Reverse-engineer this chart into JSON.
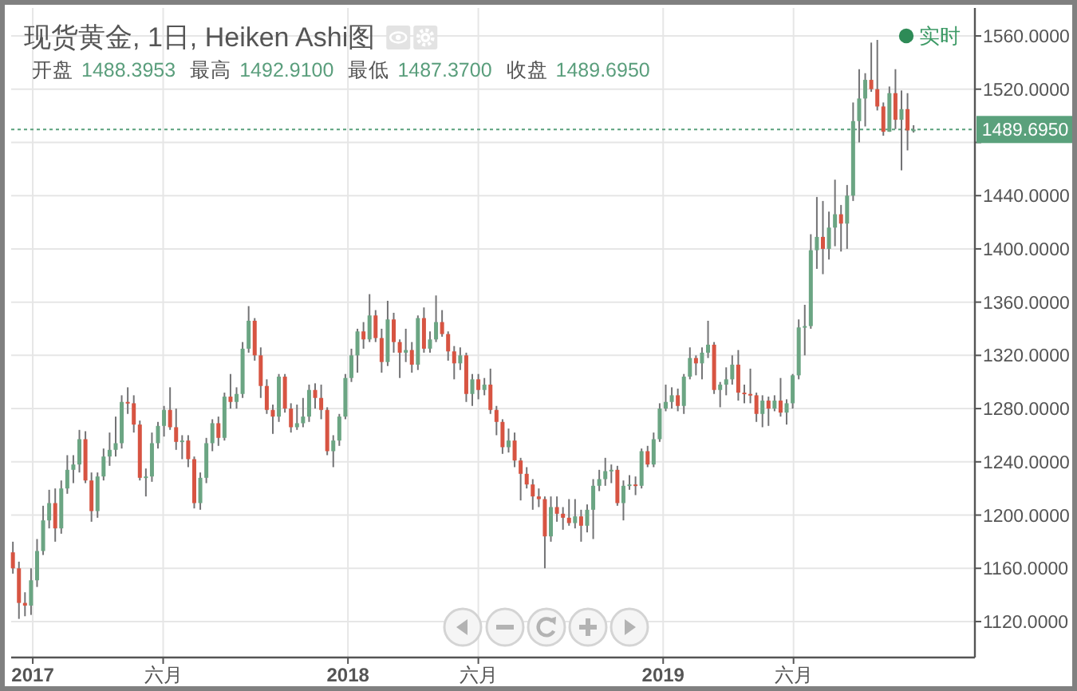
{
  "chart_data": {
    "type": "candlestick",
    "title": "现货黄金, 1日, Heiken Ashi图",
    "annotations": [
      "开盘",
      "1488.3953",
      "最高",
      "1492.9100",
      "最低",
      "1487.3700",
      "收盘",
      "1489.6950",
      "实时"
    ],
    "x": [
      "2016-12-09",
      "2016-12-16",
      "2016-12-23",
      "2016-12-30",
      "2017-01-06",
      "2017-01-13",
      "2017-01-20",
      "2017-01-27",
      "2017-02-03",
      "2017-02-10",
      "2017-02-17",
      "2017-02-24",
      "2017-03-03",
      "2017-03-10",
      "2017-03-17",
      "2017-03-24",
      "2017-03-31",
      "2017-04-07",
      "2017-04-14",
      "2017-04-21",
      "2017-04-28",
      "2017-05-05",
      "2017-05-12",
      "2017-05-19",
      "2017-05-26",
      "2017-06-02",
      "2017-06-09",
      "2017-06-16",
      "2017-06-23",
      "2017-06-30",
      "2017-07-07",
      "2017-07-14",
      "2017-07-21",
      "2017-07-28",
      "2017-08-04",
      "2017-08-11",
      "2017-08-18",
      "2017-08-25",
      "2017-09-01",
      "2017-09-08",
      "2017-09-15",
      "2017-09-22",
      "2017-09-29",
      "2017-10-06",
      "2017-10-13",
      "2017-10-20",
      "2017-10-27",
      "2017-11-03",
      "2017-11-10",
      "2017-11-17",
      "2017-11-24",
      "2017-12-01",
      "2017-12-08",
      "2017-12-15",
      "2017-12-22",
      "2017-12-29",
      "2018-01-05",
      "2018-01-12",
      "2018-01-19",
      "2018-01-26",
      "2018-02-02",
      "2018-02-09",
      "2018-02-16",
      "2018-02-23",
      "2018-03-02",
      "2018-03-09",
      "2018-03-16",
      "2018-03-23",
      "2018-03-30",
      "2018-04-06",
      "2018-04-13",
      "2018-04-20",
      "2018-04-27",
      "2018-05-04",
      "2018-05-11",
      "2018-05-18",
      "2018-05-25",
      "2018-06-01",
      "2018-06-08",
      "2018-06-15",
      "2018-06-22",
      "2018-06-29",
      "2018-07-06",
      "2018-07-13",
      "2018-07-20",
      "2018-07-27",
      "2018-08-03",
      "2018-08-10",
      "2018-08-17",
      "2018-08-24",
      "2018-08-31",
      "2018-09-07",
      "2018-09-14",
      "2018-09-21",
      "2018-09-28",
      "2018-10-05",
      "2018-10-12",
      "2018-10-19",
      "2018-10-26",
      "2018-11-02",
      "2018-11-09",
      "2018-11-16",
      "2018-11-23",
      "2018-11-30",
      "2018-12-07",
      "2018-12-14",
      "2018-12-21",
      "2018-12-28",
      "2019-01-04",
      "2019-01-11",
      "2019-01-18",
      "2019-01-25",
      "2019-02-01",
      "2019-02-08",
      "2019-02-15",
      "2019-02-22",
      "2019-03-01",
      "2019-03-08",
      "2019-03-15",
      "2019-03-22",
      "2019-03-29",
      "2019-04-05",
      "2019-04-12",
      "2019-04-19",
      "2019-04-26",
      "2019-05-03",
      "2019-05-10",
      "2019-05-17",
      "2019-05-24",
      "2019-05-31",
      "2019-06-07",
      "2019-06-14",
      "2019-06-21",
      "2019-06-28",
      "2019-07-05",
      "2019-07-12",
      "2019-07-19",
      "2019-07-26",
      "2019-08-02",
      "2019-08-09",
      "2019-08-16",
      "2019-08-23",
      "2019-08-30",
      "2019-09-06",
      "2019-09-13",
      "2019-09-20",
      "2019-09-27",
      "2019-10-04",
      "2019-10-11",
      "2019-10-18"
    ],
    "ohlc": [
      [
        1172,
        1180,
        1156,
        1160
      ],
      [
        1160,
        1165,
        1122,
        1134
      ],
      [
        1134,
        1142,
        1124,
        1132
      ],
      [
        1132,
        1160,
        1125,
        1151
      ],
      [
        1151,
        1182,
        1146,
        1173
      ],
      [
        1173,
        1207,
        1170,
        1196
      ],
      [
        1196,
        1219,
        1190,
        1209
      ],
      [
        1209,
        1220,
        1180,
        1190
      ],
      [
        1190,
        1226,
        1186,
        1220
      ],
      [
        1220,
        1245,
        1216,
        1234
      ],
      [
        1234,
        1245,
        1224,
        1238
      ],
      [
        1238,
        1264,
        1232,
        1257
      ],
      [
        1257,
        1263,
        1224,
        1226
      ],
      [
        1226,
        1232,
        1195,
        1203
      ],
      [
        1203,
        1232,
        1198,
        1229
      ],
      [
        1229,
        1250,
        1226,
        1244
      ],
      [
        1244,
        1262,
        1237,
        1249
      ],
      [
        1249,
        1274,
        1244,
        1254
      ],
      [
        1254,
        1290,
        1250,
        1285
      ],
      [
        1285,
        1296,
        1276,
        1284
      ],
      [
        1284,
        1290,
        1262,
        1268
      ],
      [
        1268,
        1271,
        1226,
        1228
      ],
      [
        1228,
        1235,
        1214,
        1229
      ],
      [
        1229,
        1262,
        1225,
        1254
      ],
      [
        1254,
        1270,
        1250,
        1267
      ],
      [
        1267,
        1282,
        1259,
        1279
      ],
      [
        1279,
        1296,
        1264,
        1266
      ],
      [
        1266,
        1280,
        1249,
        1255
      ],
      [
        1255,
        1260,
        1242,
        1256
      ],
      [
        1256,
        1260,
        1236,
        1242
      ],
      [
        1242,
        1244,
        1205,
        1209
      ],
      [
        1209,
        1232,
        1204,
        1228
      ],
      [
        1228,
        1258,
        1224,
        1254
      ],
      [
        1254,
        1272,
        1248,
        1269
      ],
      [
        1269,
        1274,
        1252,
        1258
      ],
      [
        1258,
        1292,
        1256,
        1289
      ],
      [
        1289,
        1306,
        1280,
        1285
      ],
      [
        1285,
        1296,
        1280,
        1291
      ],
      [
        1291,
        1330,
        1288,
        1325
      ],
      [
        1325,
        1357,
        1322,
        1346
      ],
      [
        1346,
        1348,
        1316,
        1320
      ],
      [
        1320,
        1326,
        1288,
        1297
      ],
      [
        1297,
        1302,
        1276,
        1279
      ],
      [
        1279,
        1283,
        1261,
        1274
      ],
      [
        1274,
        1306,
        1270,
        1304
      ],
      [
        1304,
        1306,
        1277,
        1280
      ],
      [
        1280,
        1284,
        1262,
        1266
      ],
      [
        1266,
        1283,
        1264,
        1269
      ],
      [
        1269,
        1288,
        1266,
        1274
      ],
      [
        1274,
        1298,
        1270,
        1294
      ],
      [
        1294,
        1299,
        1280,
        1288
      ],
      [
        1288,
        1298,
        1272,
        1279
      ],
      [
        1279,
        1281,
        1245,
        1248
      ],
      [
        1248,
        1260,
        1236,
        1256
      ],
      [
        1256,
        1276,
        1252,
        1274
      ],
      [
        1274,
        1306,
        1272,
        1303
      ],
      [
        1303,
        1325,
        1300,
        1320
      ],
      [
        1320,
        1340,
        1307,
        1338
      ],
      [
        1338,
        1345,
        1325,
        1332
      ],
      [
        1332,
        1366,
        1330,
        1350
      ],
      [
        1350,
        1354,
        1330,
        1333
      ],
      [
        1333,
        1340,
        1307,
        1315
      ],
      [
        1315,
        1361,
        1312,
        1347
      ],
      [
        1347,
        1352,
        1322,
        1330
      ],
      [
        1330,
        1332,
        1303,
        1322
      ],
      [
        1322,
        1340,
        1315,
        1324
      ],
      [
        1324,
        1330,
        1307,
        1313
      ],
      [
        1313,
        1350,
        1309,
        1348
      ],
      [
        1348,
        1356,
        1322,
        1325
      ],
      [
        1325,
        1338,
        1322,
        1332
      ],
      [
        1332,
        1365,
        1330,
        1345
      ],
      [
        1345,
        1354,
        1334,
        1336
      ],
      [
        1336,
        1338,
        1316,
        1323
      ],
      [
        1323,
        1327,
        1302,
        1314
      ],
      [
        1314,
        1326,
        1309,
        1320
      ],
      [
        1320,
        1322,
        1285,
        1291
      ],
      [
        1291,
        1306,
        1282,
        1302
      ],
      [
        1302,
        1306,
        1287,
        1294
      ],
      [
        1294,
        1303,
        1290,
        1298
      ],
      [
        1298,
        1310,
        1276,
        1279
      ],
      [
        1279,
        1282,
        1260,
        1270
      ],
      [
        1270,
        1272,
        1246,
        1251
      ],
      [
        1251,
        1265,
        1247,
        1256
      ],
      [
        1256,
        1262,
        1236,
        1241
      ],
      [
        1241,
        1243,
        1211,
        1231
      ],
      [
        1231,
        1236,
        1220,
        1223
      ],
      [
        1223,
        1227,
        1204,
        1214
      ],
      [
        1214,
        1220,
        1206,
        1212
      ],
      [
        1212,
        1214,
        1160,
        1184
      ],
      [
        1184,
        1214,
        1180,
        1206
      ],
      [
        1206,
        1214,
        1195,
        1201
      ],
      [
        1201,
        1206,
        1189,
        1198
      ],
      [
        1198,
        1212,
        1192,
        1194
      ],
      [
        1194,
        1212,
        1190,
        1199
      ],
      [
        1199,
        1204,
        1180,
        1192
      ],
      [
        1192,
        1208,
        1187,
        1204
      ],
      [
        1204,
        1227,
        1182,
        1222
      ],
      [
        1222,
        1234,
        1218,
        1227
      ],
      [
        1227,
        1243,
        1222,
        1233
      ],
      [
        1233,
        1238,
        1224,
        1234
      ],
      [
        1234,
        1237,
        1207,
        1209
      ],
      [
        1209,
        1226,
        1196,
        1222
      ],
      [
        1222,
        1230,
        1219,
        1223
      ],
      [
        1223,
        1229,
        1215,
        1222
      ],
      [
        1222,
        1250,
        1220,
        1248
      ],
      [
        1248,
        1252,
        1236,
        1238
      ],
      [
        1238,
        1262,
        1236,
        1257
      ],
      [
        1257,
        1284,
        1255,
        1280
      ],
      [
        1280,
        1298,
        1278,
        1285
      ],
      [
        1285,
        1296,
        1280,
        1290
      ],
      [
        1290,
        1295,
        1278,
        1282
      ],
      [
        1282,
        1306,
        1276,
        1304
      ],
      [
        1304,
        1326,
        1302,
        1318
      ],
      [
        1318,
        1320,
        1305,
        1314
      ],
      [
        1314,
        1326,
        1302,
        1322
      ],
      [
        1322,
        1346,
        1318,
        1328
      ],
      [
        1328,
        1330,
        1291,
        1294
      ],
      [
        1294,
        1300,
        1281,
        1298
      ],
      [
        1298,
        1311,
        1290,
        1302
      ],
      [
        1302,
        1320,
        1298,
        1313
      ],
      [
        1313,
        1324,
        1286,
        1292
      ],
      [
        1292,
        1298,
        1284,
        1291
      ],
      [
        1291,
        1310,
        1284,
        1290
      ],
      [
        1290,
        1292,
        1270,
        1276
      ],
      [
        1276,
        1290,
        1266,
        1286
      ],
      [
        1286,
        1289,
        1267,
        1280
      ],
      [
        1280,
        1290,
        1278,
        1286
      ],
      [
        1286,
        1303,
        1274,
        1277
      ],
      [
        1277,
        1287,
        1268,
        1284
      ],
      [
        1284,
        1306,
        1280,
        1305
      ],
      [
        1305,
        1347,
        1302,
        1341
      ],
      [
        1341,
        1358,
        1320,
        1342
      ],
      [
        1342,
        1411,
        1340,
        1399
      ],
      [
        1399,
        1439,
        1385,
        1409
      ],
      [
        1409,
        1436,
        1381,
        1400
      ],
      [
        1400,
        1428,
        1392,
        1416
      ],
      [
        1416,
        1452,
        1402,
        1426
      ],
      [
        1426,
        1433,
        1398,
        1419
      ],
      [
        1419,
        1448,
        1400,
        1440
      ],
      [
        1440,
        1510,
        1436,
        1496
      ],
      [
        1496,
        1535,
        1480,
        1513
      ],
      [
        1513,
        1532,
        1492,
        1527
      ],
      [
        1527,
        1555,
        1518,
        1520
      ],
      [
        1520,
        1557,
        1504,
        1507
      ],
      [
        1507,
        1510,
        1485,
        1488
      ],
      [
        1488,
        1522,
        1488,
        1517
      ],
      [
        1517,
        1535,
        1490,
        1497
      ],
      [
        1497,
        1519,
        1459,
        1505
      ],
      [
        1505,
        1517,
        1474,
        1489
      ],
      [
        1488.3953,
        1492.91,
        1487.37,
        1489.695
      ]
    ],
    "colors": [
      "#d75442",
      "#d75442",
      "#d75442",
      "#6ba583",
      "#6ba583",
      "#6ba583",
      "#6ba583",
      "#d75442",
      "#6ba583",
      "#6ba583",
      "#6ba583",
      "#6ba583",
      "#d75442",
      "#d75442",
      "#6ba583",
      "#6ba583",
      "#6ba583",
      "#6ba583",
      "#6ba583",
      "#d75442",
      "#d75442",
      "#d75442",
      "#6ba583",
      "#6ba583",
      "#6ba583",
      "#6ba583",
      "#d75442",
      "#d75442",
      "#6ba583",
      "#d75442",
      "#d75442",
      "#6ba583",
      "#6ba583",
      "#6ba583",
      "#d75442",
      "#6ba583",
      "#d75442",
      "#6ba583",
      "#6ba583",
      "#6ba583",
      "#d75442",
      "#d75442",
      "#d75442",
      "#d75442",
      "#6ba583",
      "#d75442",
      "#d75442",
      "#6ba583",
      "#6ba583",
      "#6ba583",
      "#d75442",
      "#d75442",
      "#d75442",
      "#6ba583",
      "#6ba583",
      "#6ba583",
      "#6ba583",
      "#6ba583",
      "#d75442",
      "#6ba583",
      "#d75442",
      "#d75442",
      "#6ba583",
      "#d75442",
      "#d75442",
      "#6ba583",
      "#d75442",
      "#6ba583",
      "#d75442",
      "#6ba583",
      "#6ba583",
      "#d75442",
      "#d75442",
      "#d75442",
      "#6ba583",
      "#d75442",
      "#6ba583",
      "#d75442",
      "#6ba583",
      "#d75442",
      "#d75442",
      "#d75442",
      "#6ba583",
      "#d75442",
      "#d75442",
      "#d75442",
      "#d75442",
      "#d75442",
      "#d75442",
      "#6ba583",
      "#d75442",
      "#d75442",
      "#d75442",
      "#6ba583",
      "#d75442",
      "#6ba583",
      "#6ba583",
      "#6ba583",
      "#6ba583",
      "#6ba583",
      "#d75442",
      "#6ba583",
      "#6ba583",
      "#d75442",
      "#6ba583",
      "#d75442",
      "#6ba583",
      "#6ba583",
      "#6ba583",
      "#6ba583",
      "#d75442",
      "#6ba583",
      "#6ba583",
      "#d75442",
      "#6ba583",
      "#6ba583",
      "#d75442",
      "#6ba583",
      "#6ba583",
      "#6ba583",
      "#d75442",
      "#d75442",
      "#d75442",
      "#d75442",
      "#6ba583",
      "#d75442",
      "#6ba583",
      "#d75442",
      "#6ba583",
      "#6ba583",
      "#6ba583",
      "#6ba583",
      "#6ba583",
      "#6ba583",
      "#d75442",
      "#6ba583",
      "#6ba583",
      "#d75442",
      "#6ba583",
      "#6ba583",
      "#6ba583",
      "#6ba583",
      "#d75442",
      "#d75442",
      "#d75442",
      "#6ba583",
      "#d75442",
      "#6ba583",
      "#d75442",
      "#6ba583"
    ],
    "xlim": [
      "2016-12-07",
      "2019-12-28"
    ],
    "ylim": [
      1093,
      1581
    ],
    "xticks": [
      {
        "value": "2017-01-01",
        "label": "2017"
      },
      {
        "value": "2017-06-01",
        "label": "六月"
      },
      {
        "value": "2018-01-01",
        "label": "2018"
      },
      {
        "value": "2018-06-01",
        "label": "六月"
      },
      {
        "value": "2019-01-01",
        "label": "2019"
      },
      {
        "value": "2019-06-01",
        "label": "六月"
      }
    ],
    "yticks": [
      {
        "value": 1120,
        "label": "1120.0000"
      },
      {
        "value": 1160,
        "label": "1160.0000"
      },
      {
        "value": 1200,
        "label": "1200.0000"
      },
      {
        "value": 1240,
        "label": "1240.0000"
      },
      {
        "value": 1280,
        "label": "1280.0000"
      },
      {
        "value": 1320,
        "label": "1320.0000"
      },
      {
        "value": 1360,
        "label": "1360.0000"
      },
      {
        "value": 1400,
        "label": "1400.0000"
      },
      {
        "value": 1440,
        "label": "1440.0000"
      },
      {
        "value": 1480,
        "label": null
      },
      {
        "value": 1520,
        "label": "1520.0000"
      },
      {
        "value": 1560,
        "label": "1560.0000"
      }
    ],
    "grid": true,
    "ref_lines": [
      {
        "axis": "y",
        "value": 1489.695,
        "label": "1489.6950",
        "color": "#5aa17c",
        "line_style": "dotted"
      }
    ]
  }
}
